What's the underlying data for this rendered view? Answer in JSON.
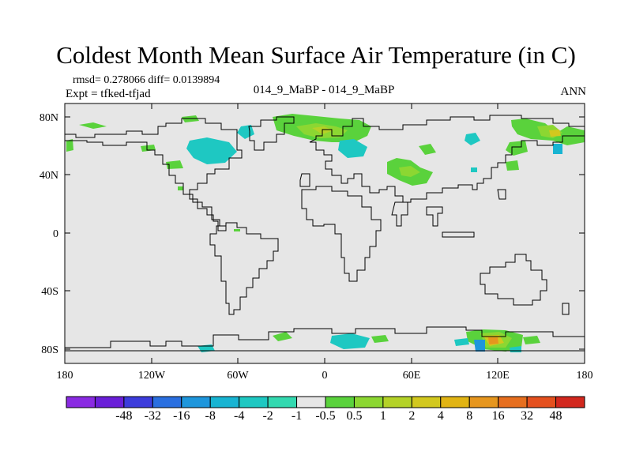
{
  "title": "Coldest Month Mean Surface Air Temperature (in C)",
  "stats_line": "rmsd= 0.278066 diff= 0.0139894",
  "experiment_line": "Expt = tfked-tfjad",
  "comparison_line": "014_9_MaBP - 014_9_MaBP",
  "season": "ANN",
  "background_color": "#e6e6e6",
  "coastline_color": "#000000",
  "lat_labels": [
    "80N",
    "40N",
    "0",
    "40S",
    "80S"
  ],
  "lon_labels": [
    "180",
    "120W",
    "60W",
    "0",
    "60E",
    "120E",
    "180"
  ],
  "colorbar": {
    "colors": [
      "#8a2be2",
      "#6a1fd8",
      "#3c3cdc",
      "#2a6fe0",
      "#1e96dc",
      "#18b4d2",
      "#1ec8c2",
      "#33d9b0",
      "#e6e6e6",
      "#5ad23c",
      "#8cd732",
      "#b4d228",
      "#d2c81e",
      "#e1b414",
      "#e6961e",
      "#e66e1e",
      "#e4501e",
      "#d2281e"
    ],
    "labels": [
      "-48",
      "-32",
      "-16",
      "-8",
      "-4",
      "-2",
      "-1",
      "-0.5",
      "0.5",
      "1",
      "2",
      "4",
      "8",
      "16",
      "32",
      "48"
    ]
  }
}
